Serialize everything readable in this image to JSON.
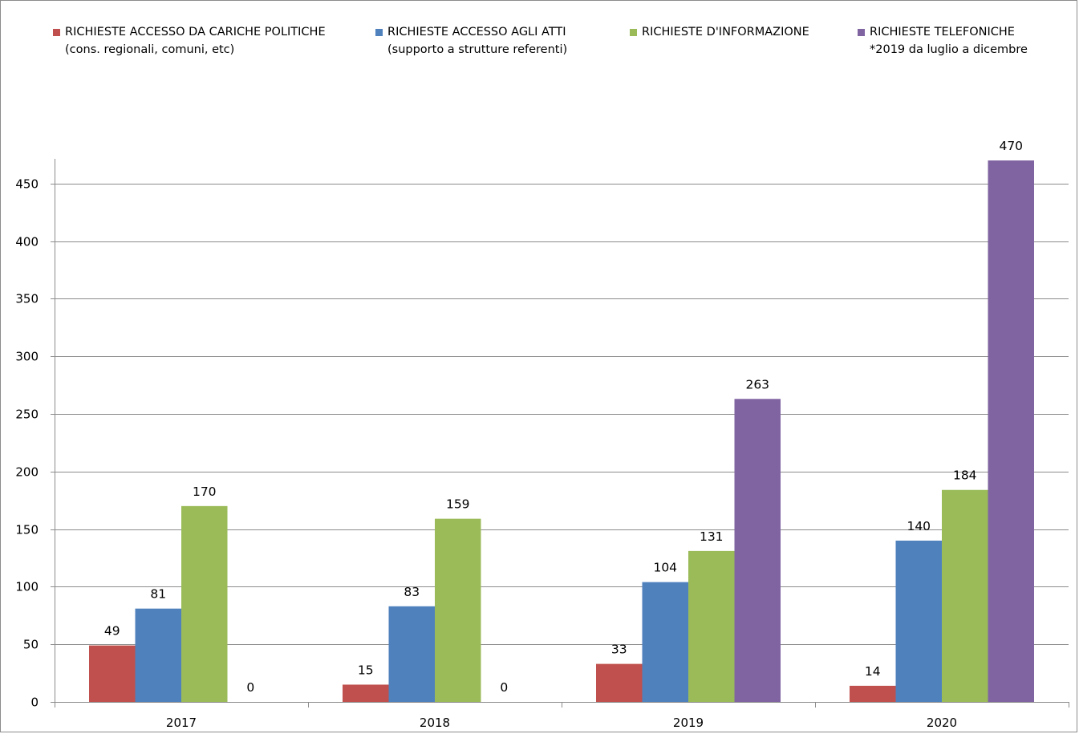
{
  "chart_data": {
    "type": "bar",
    "categories": [
      "2017",
      "2018",
      "2019",
      "2020"
    ],
    "series": [
      {
        "name": "RICHIESTE ACCESSO DA CARICHE POLITICHE",
        "note": "(cons. regionali, comuni, etc)",
        "color": "#c0504d",
        "values": [
          49,
          15,
          33,
          14
        ]
      },
      {
        "name": "RICHIESTE ACCESSO AGLI ATTI",
        "note": "(supporto a strutture referenti)",
        "color": "#4f81bd",
        "values": [
          81,
          83,
          104,
          140
        ]
      },
      {
        "name": "RICHIESTE D'INFORMAZIONE",
        "note": "",
        "color": "#9bbb59",
        "values": [
          170,
          159,
          131,
          184
        ]
      },
      {
        "name": "RICHIESTE TELEFONICHE",
        "note": "*2019 da luglio a dicembre",
        "color": "#8064a2",
        "values": [
          0,
          0,
          263,
          470
        ]
      }
    ],
    "yticks": [
      0,
      50,
      100,
      150,
      200,
      250,
      300,
      350,
      400,
      450
    ],
    "ylim": [
      0,
      470
    ],
    "grid": true,
    "legend_position": "top",
    "data_labels": true,
    "title": "",
    "xlabel": "",
    "ylabel": ""
  }
}
